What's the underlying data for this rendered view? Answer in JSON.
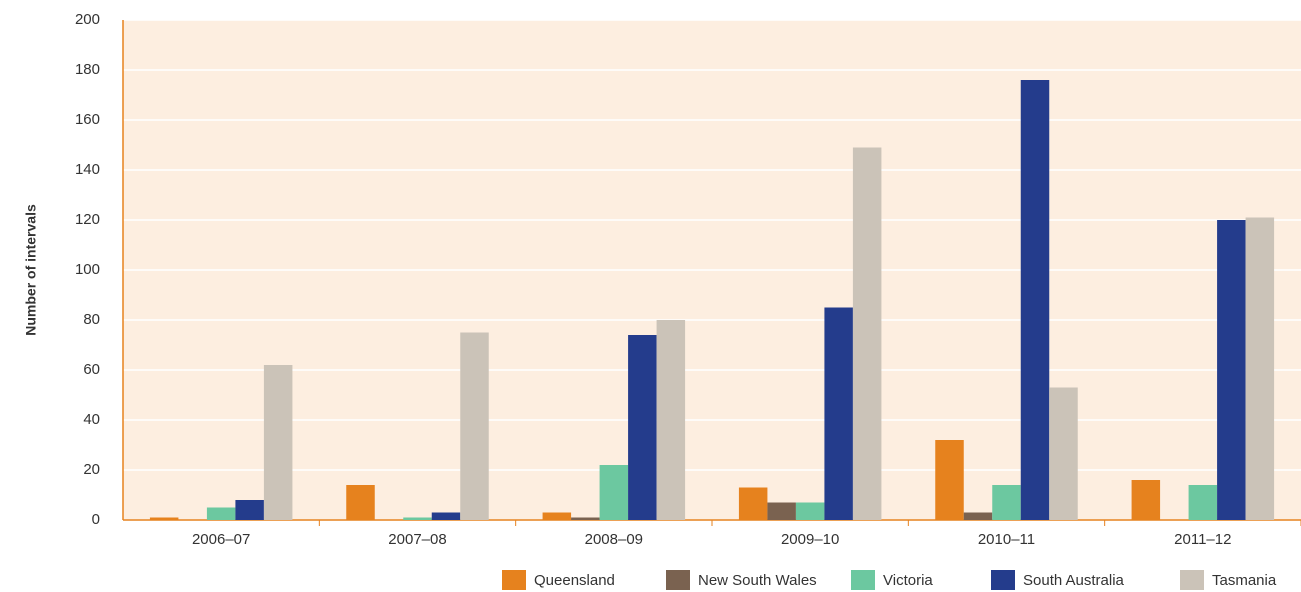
{
  "chart_data": {
    "type": "bar",
    "y_label": "Number of intervals",
    "categories": [
      "2006–07",
      "2007–08",
      "2008–09",
      "2009–10",
      "2010–11",
      "2011–12"
    ],
    "series": [
      {
        "name": "Queensland",
        "color": "#e6821e",
        "values": [
          1,
          14,
          3,
          13,
          32,
          16
        ]
      },
      {
        "name": "New South Wales",
        "color": "#7a6250",
        "values": [
          0,
          0,
          1,
          7,
          3,
          0
        ]
      },
      {
        "name": "Victoria",
        "color": "#6cc8a0",
        "values": [
          5,
          1,
          22,
          7,
          14,
          14
        ]
      },
      {
        "name": "South Australia",
        "color": "#243c8c",
        "values": [
          8,
          3,
          74,
          85,
          176,
          120
        ]
      },
      {
        "name": "Tasmania",
        "color": "#cbc3b8",
        "values": [
          62,
          75,
          80,
          149,
          53,
          121
        ]
      }
    ],
    "ylim": [
      0,
      200
    ],
    "yticks": [
      0,
      20,
      40,
      60,
      80,
      100,
      120,
      140,
      160,
      180,
      200
    ],
    "grid": true,
    "legend": "bottom-right"
  }
}
